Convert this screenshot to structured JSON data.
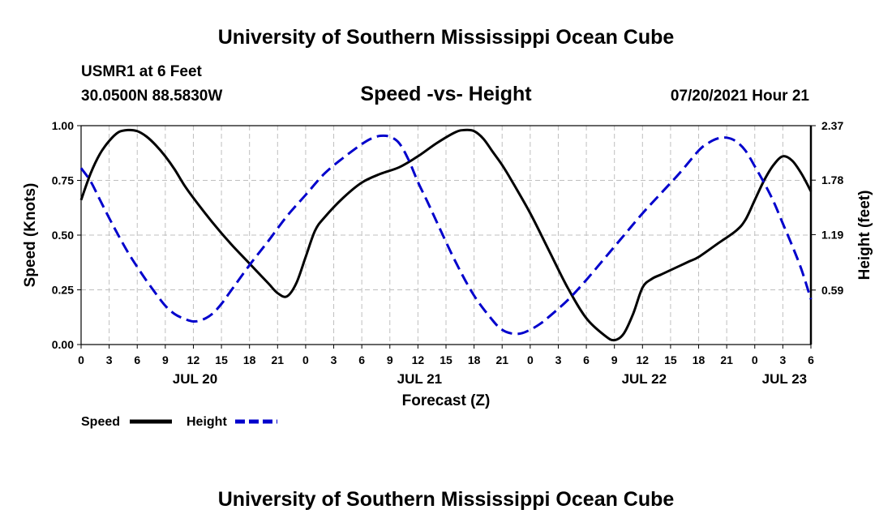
{
  "header": {
    "title": "University of Southern Mississippi Ocean Cube",
    "station": "USMR1 at 6 Feet",
    "coords": "30.0500N  88.5830W",
    "subtitle": "Speed -vs- Height",
    "datetime": "07/20/2021 Hour 21"
  },
  "footer": {
    "title": "University of Southern Mississippi Ocean Cube"
  },
  "colors": {
    "speed": "#000000",
    "height": "#0000cc",
    "grid": "#bfbfbf"
  },
  "chart_data": {
    "type": "line",
    "title": "Speed -vs- Height",
    "xlabel": "Forecast (Z)",
    "ylabel": "Speed (Knots)",
    "y2label": "Height (feet)",
    "x_unit": "hours since 2021-07-20 00Z",
    "xlim": [
      0,
      78
    ],
    "ylim": [
      0,
      1.0
    ],
    "y2lim": [
      0,
      2.37
    ],
    "x_ticks": [
      0,
      3,
      6,
      9,
      12,
      15,
      18,
      21,
      24,
      27,
      30,
      33,
      36,
      39,
      42,
      45,
      48,
      51,
      54,
      57,
      60,
      63,
      66,
      69,
      72,
      75,
      78
    ],
    "x_tick_labels": [
      "0",
      "3",
      "6",
      "9",
      "12",
      "15",
      "18",
      "21",
      "0",
      "3",
      "6",
      "9",
      "12",
      "15",
      "18",
      "21",
      "0",
      "3",
      "6",
      "9",
      "12",
      "15",
      "18",
      "21",
      "0",
      "3",
      "6"
    ],
    "y_ticks": [
      0,
      0.25,
      0.5,
      0.75,
      1.0
    ],
    "y_tick_labels": [
      "0.00",
      "0.25",
      "0.50",
      "0.75",
      "1.00"
    ],
    "y2_ticks": [
      0.59,
      1.19,
      1.78,
      2.37
    ],
    "y2_tick_labels": [
      "0.59",
      "1.19",
      "1.78",
      "2.37"
    ],
    "date_labels": [
      {
        "x": 12,
        "label": "JUL 20"
      },
      {
        "x": 36,
        "label": "JUL 21"
      },
      {
        "x": 60,
        "label": "JUL 22"
      },
      {
        "x": 75,
        "label": "JUL 23"
      }
    ],
    "series": [
      {
        "name": "Speed",
        "axis": "left",
        "style": "solid",
        "x": [
          0,
          1,
          2,
          3,
          4,
          5,
          6,
          7,
          8,
          9,
          10,
          11,
          12,
          14,
          16,
          18,
          20,
          21,
          22,
          23,
          24,
          25,
          26,
          28,
          30,
          32,
          34,
          36,
          38,
          40,
          41,
          42,
          43,
          44,
          45,
          46,
          48,
          50,
          52,
          54,
          56,
          57,
          58,
          59,
          60,
          61,
          62,
          63,
          64,
          65,
          66,
          68,
          70,
          71,
          72,
          73,
          74,
          75,
          76,
          77,
          78
        ],
        "values": [
          0.66,
          0.78,
          0.87,
          0.93,
          0.97,
          0.98,
          0.975,
          0.95,
          0.91,
          0.86,
          0.8,
          0.73,
          0.67,
          0.56,
          0.46,
          0.37,
          0.28,
          0.235,
          0.22,
          0.28,
          0.4,
          0.52,
          0.58,
          0.67,
          0.74,
          0.78,
          0.81,
          0.86,
          0.92,
          0.97,
          0.98,
          0.975,
          0.94,
          0.88,
          0.82,
          0.75,
          0.6,
          0.43,
          0.26,
          0.12,
          0.04,
          0.02,
          0.05,
          0.14,
          0.26,
          0.3,
          0.32,
          0.34,
          0.36,
          0.38,
          0.4,
          0.46,
          0.52,
          0.57,
          0.66,
          0.75,
          0.82,
          0.86,
          0.84,
          0.78,
          0.7
        ]
      },
      {
        "name": "Height",
        "axis": "right",
        "style": "dashed",
        "x": [
          0,
          1,
          2,
          3,
          4,
          5,
          6,
          7,
          8,
          9,
          10,
          11,
          12,
          13,
          14,
          15,
          16,
          18,
          20,
          22,
          24,
          26,
          28,
          30,
          31,
          32,
          33,
          34,
          35,
          36,
          37,
          38,
          40,
          42,
          44,
          45,
          46,
          47,
          48,
          49,
          50,
          52,
          54,
          56,
          58,
          60,
          62,
          64,
          66,
          67,
          68,
          69,
          70,
          71,
          72,
          73,
          74,
          75,
          76,
          77,
          78
        ],
        "values": [
          1.91,
          1.77,
          1.57,
          1.37,
          1.18,
          1.0,
          0.84,
          0.69,
          0.55,
          0.42,
          0.33,
          0.28,
          0.25,
          0.27,
          0.33,
          0.44,
          0.58,
          0.86,
          1.12,
          1.39,
          1.62,
          1.85,
          2.02,
          2.17,
          2.23,
          2.26,
          2.25,
          2.18,
          2.0,
          1.76,
          1.55,
          1.33,
          0.9,
          0.53,
          0.26,
          0.16,
          0.12,
          0.12,
          0.16,
          0.22,
          0.3,
          0.48,
          0.7,
          0.94,
          1.18,
          1.42,
          1.64,
          1.86,
          2.1,
          2.18,
          2.23,
          2.24,
          2.2,
          2.1,
          1.93,
          1.75,
          1.55,
          1.31,
          1.07,
          0.81,
          0.49
        ]
      }
    ],
    "legend": {
      "placement": "bottom-left",
      "entries": [
        "Speed",
        "Height"
      ]
    },
    "grid": true
  }
}
